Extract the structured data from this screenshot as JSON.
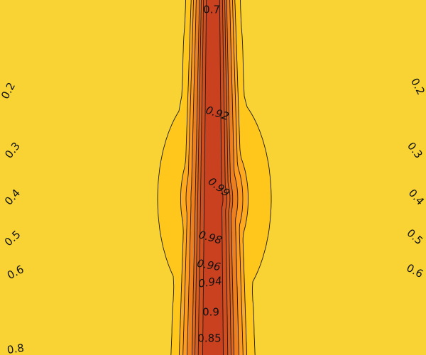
{
  "chart_data": {
    "type": "contour",
    "title": "",
    "xlabel": "",
    "ylabel": "",
    "grid": false,
    "legend": "none",
    "colors": {
      "low": "#1d5a99",
      "mid_blue": "#22b2ee",
      "neutral": "#d9d6a8",
      "yellow": "#ffd21a",
      "orange": "#ff9a1f",
      "high": "#c53a1f",
      "line": "#1a1a1a"
    },
    "levels": [
      0.1,
      0.2,
      0.3,
      0.4,
      0.5,
      0.6,
      0.7,
      0.8,
      0.85,
      0.9,
      0.92,
      0.94,
      0.96,
      0.97,
      0.98,
      0.99
    ],
    "contour_labels": [
      {
        "level": "0.7",
        "text": "0.7"
      },
      {
        "level": "0.2",
        "text": "0.2"
      },
      {
        "level": "0.2",
        "text": "0.2"
      },
      {
        "level": "0.3",
        "text": "0.3"
      },
      {
        "level": "0.3",
        "text": "0.3"
      },
      {
        "level": "0.4",
        "text": "0.4"
      },
      {
        "level": "0.4",
        "text": "0.4"
      },
      {
        "level": "0.5",
        "text": "0.5"
      },
      {
        "level": "0.5",
        "text": "0.5"
      },
      {
        "level": "0.6",
        "text": "0.6"
      },
      {
        "level": "0.6",
        "text": "0.6"
      },
      {
        "level": "0.8",
        "text": "0.8"
      },
      {
        "level": "0.85",
        "text": "0.85"
      },
      {
        "level": "0.9",
        "text": "0.9"
      },
      {
        "level": "0.94",
        "text": "0.94"
      },
      {
        "level": "0.96",
        "text": "0.96"
      },
      {
        "level": "0.98",
        "text": "0.98"
      },
      {
        "level": "0.99",
        "text": "0.99"
      },
      {
        "level": "0.92",
        "text": "0.92"
      }
    ]
  }
}
